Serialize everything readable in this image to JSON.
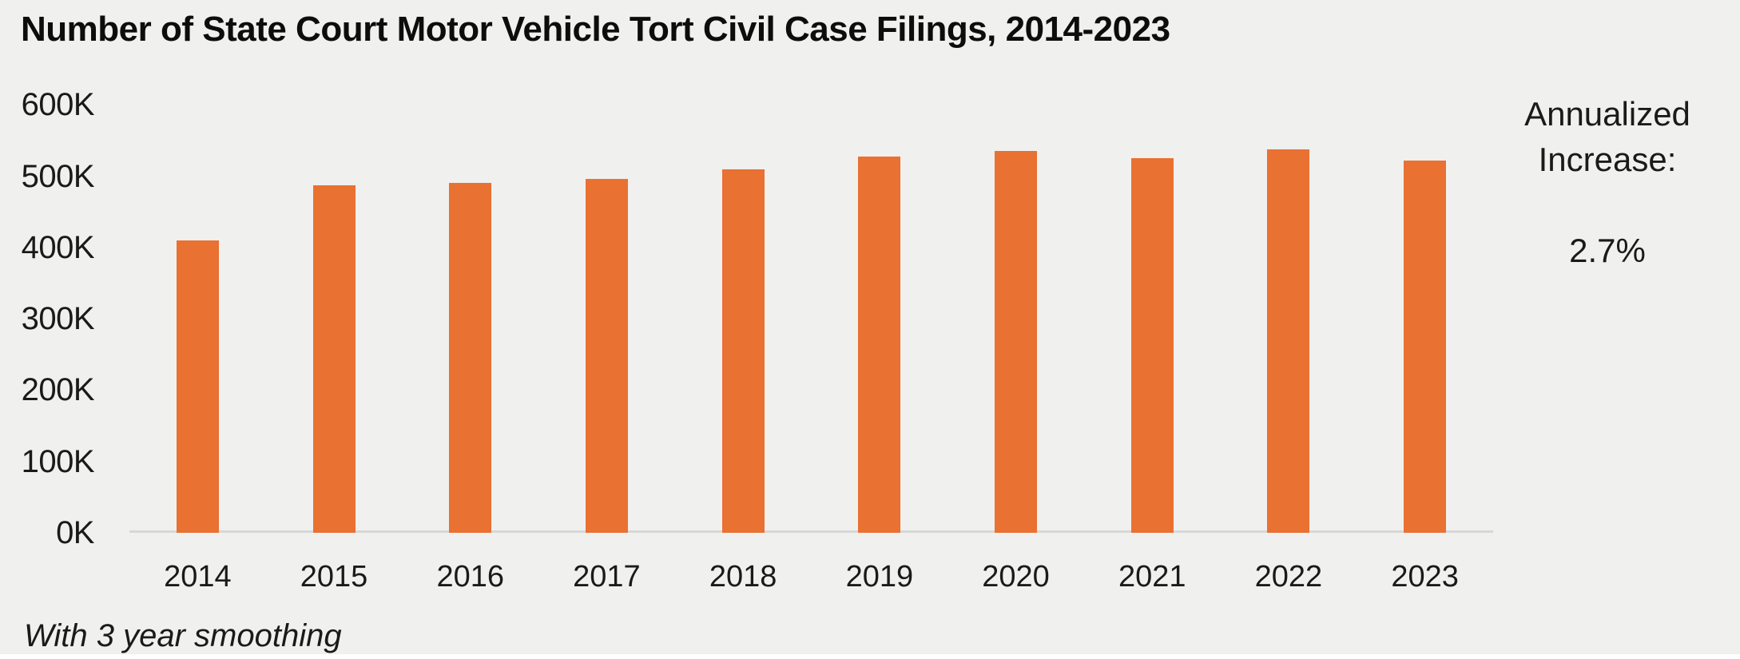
{
  "chart_data": {
    "type": "bar",
    "title": "Number of State Court Motor Vehicle Tort Civil Case Filings, 2014-2023",
    "categories": [
      "2014",
      "2015",
      "2016",
      "2017",
      "2018",
      "2019",
      "2020",
      "2021",
      "2022",
      "2023"
    ],
    "values": [
      410000,
      487000,
      490000,
      496000,
      509000,
      527000,
      535000,
      525000,
      537000,
      522000
    ],
    "y_ticks": [
      {
        "label": "600K",
        "value": 600000
      },
      {
        "label": "500K",
        "value": 500000
      },
      {
        "label": "400K",
        "value": 400000
      },
      {
        "label": "300K",
        "value": 300000
      },
      {
        "label": "200K",
        "value": 200000
      },
      {
        "label": "100K",
        "value": 100000
      },
      {
        "label": "0K",
        "value": 0
      }
    ],
    "ylim": [
      0,
      600000
    ],
    "gridlines": false,
    "legend": "none",
    "bar_color": "#E97132",
    "background_color": "#F0F0EF",
    "axis_line_color": "#D7D7D6",
    "text_color": "#1A1A1A",
    "title_color": "#0D0D0D",
    "bottom_edge_color": "#FFFFFF",
    "annotation": {
      "line1": "Annualized",
      "line2": "Increase:",
      "value": "2.7%"
    },
    "footnote": "With 3 year smoothing"
  }
}
